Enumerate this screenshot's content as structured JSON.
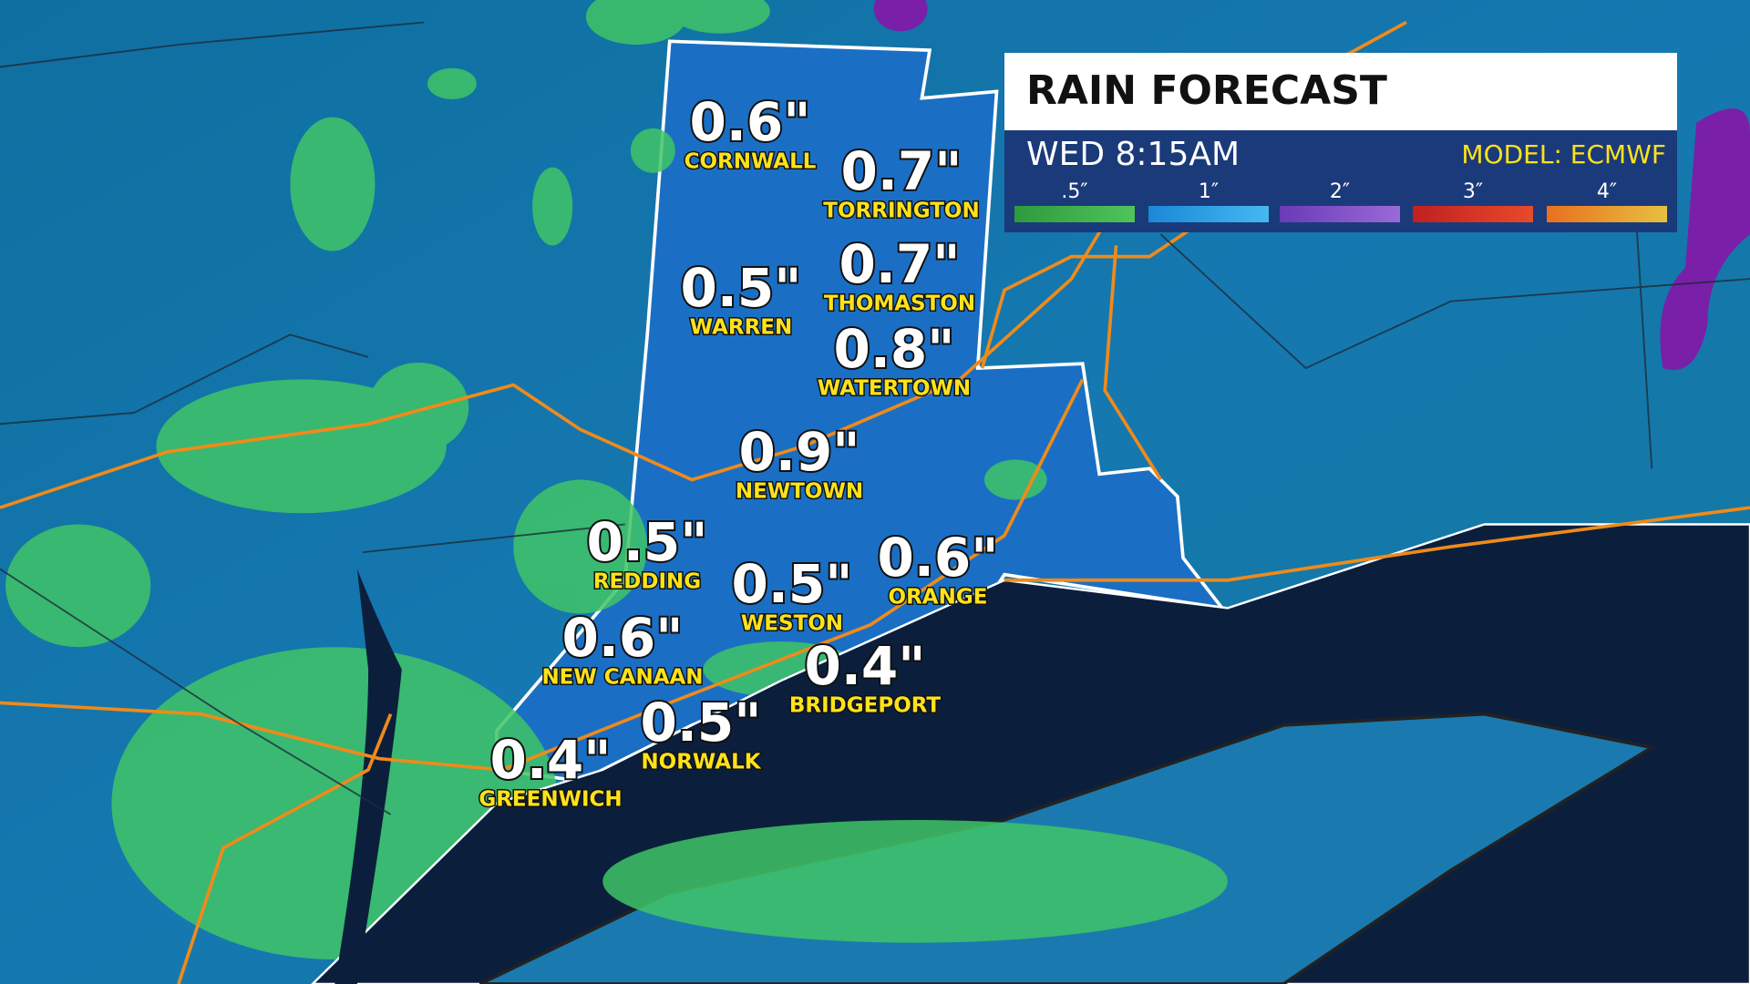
{
  "header": {
    "title": "RAIN FORECAST",
    "time": "WED 8:15AM",
    "model": "MODEL: ECMWF"
  },
  "legend": [
    ".5″",
    "1″",
    "2″",
    "3″",
    "4″"
  ],
  "towns": [
    {
      "name": "CORNWALL",
      "amount": "0.6\""
    },
    {
      "name": "TORRINGTON",
      "amount": "0.7\""
    },
    {
      "name": "WARREN",
      "amount": "0.5\""
    },
    {
      "name": "THOMASTON",
      "amount": "0.7\""
    },
    {
      "name": "WATERTOWN",
      "amount": "0.8\""
    },
    {
      "name": "NEWTOWN",
      "amount": "0.9\""
    },
    {
      "name": "REDDING",
      "amount": "0.5\""
    },
    {
      "name": "WESTON",
      "amount": "0.5\""
    },
    {
      "name": "ORANGE",
      "amount": "0.6\""
    },
    {
      "name": "NEW CANAAN",
      "amount": "0.6\""
    },
    {
      "name": "BRIDGEPORT",
      "amount": "0.4\""
    },
    {
      "name": "NORWALK",
      "amount": "0.5\""
    },
    {
      "name": "GREENWICH",
      "amount": "0.4\""
    }
  ]
}
